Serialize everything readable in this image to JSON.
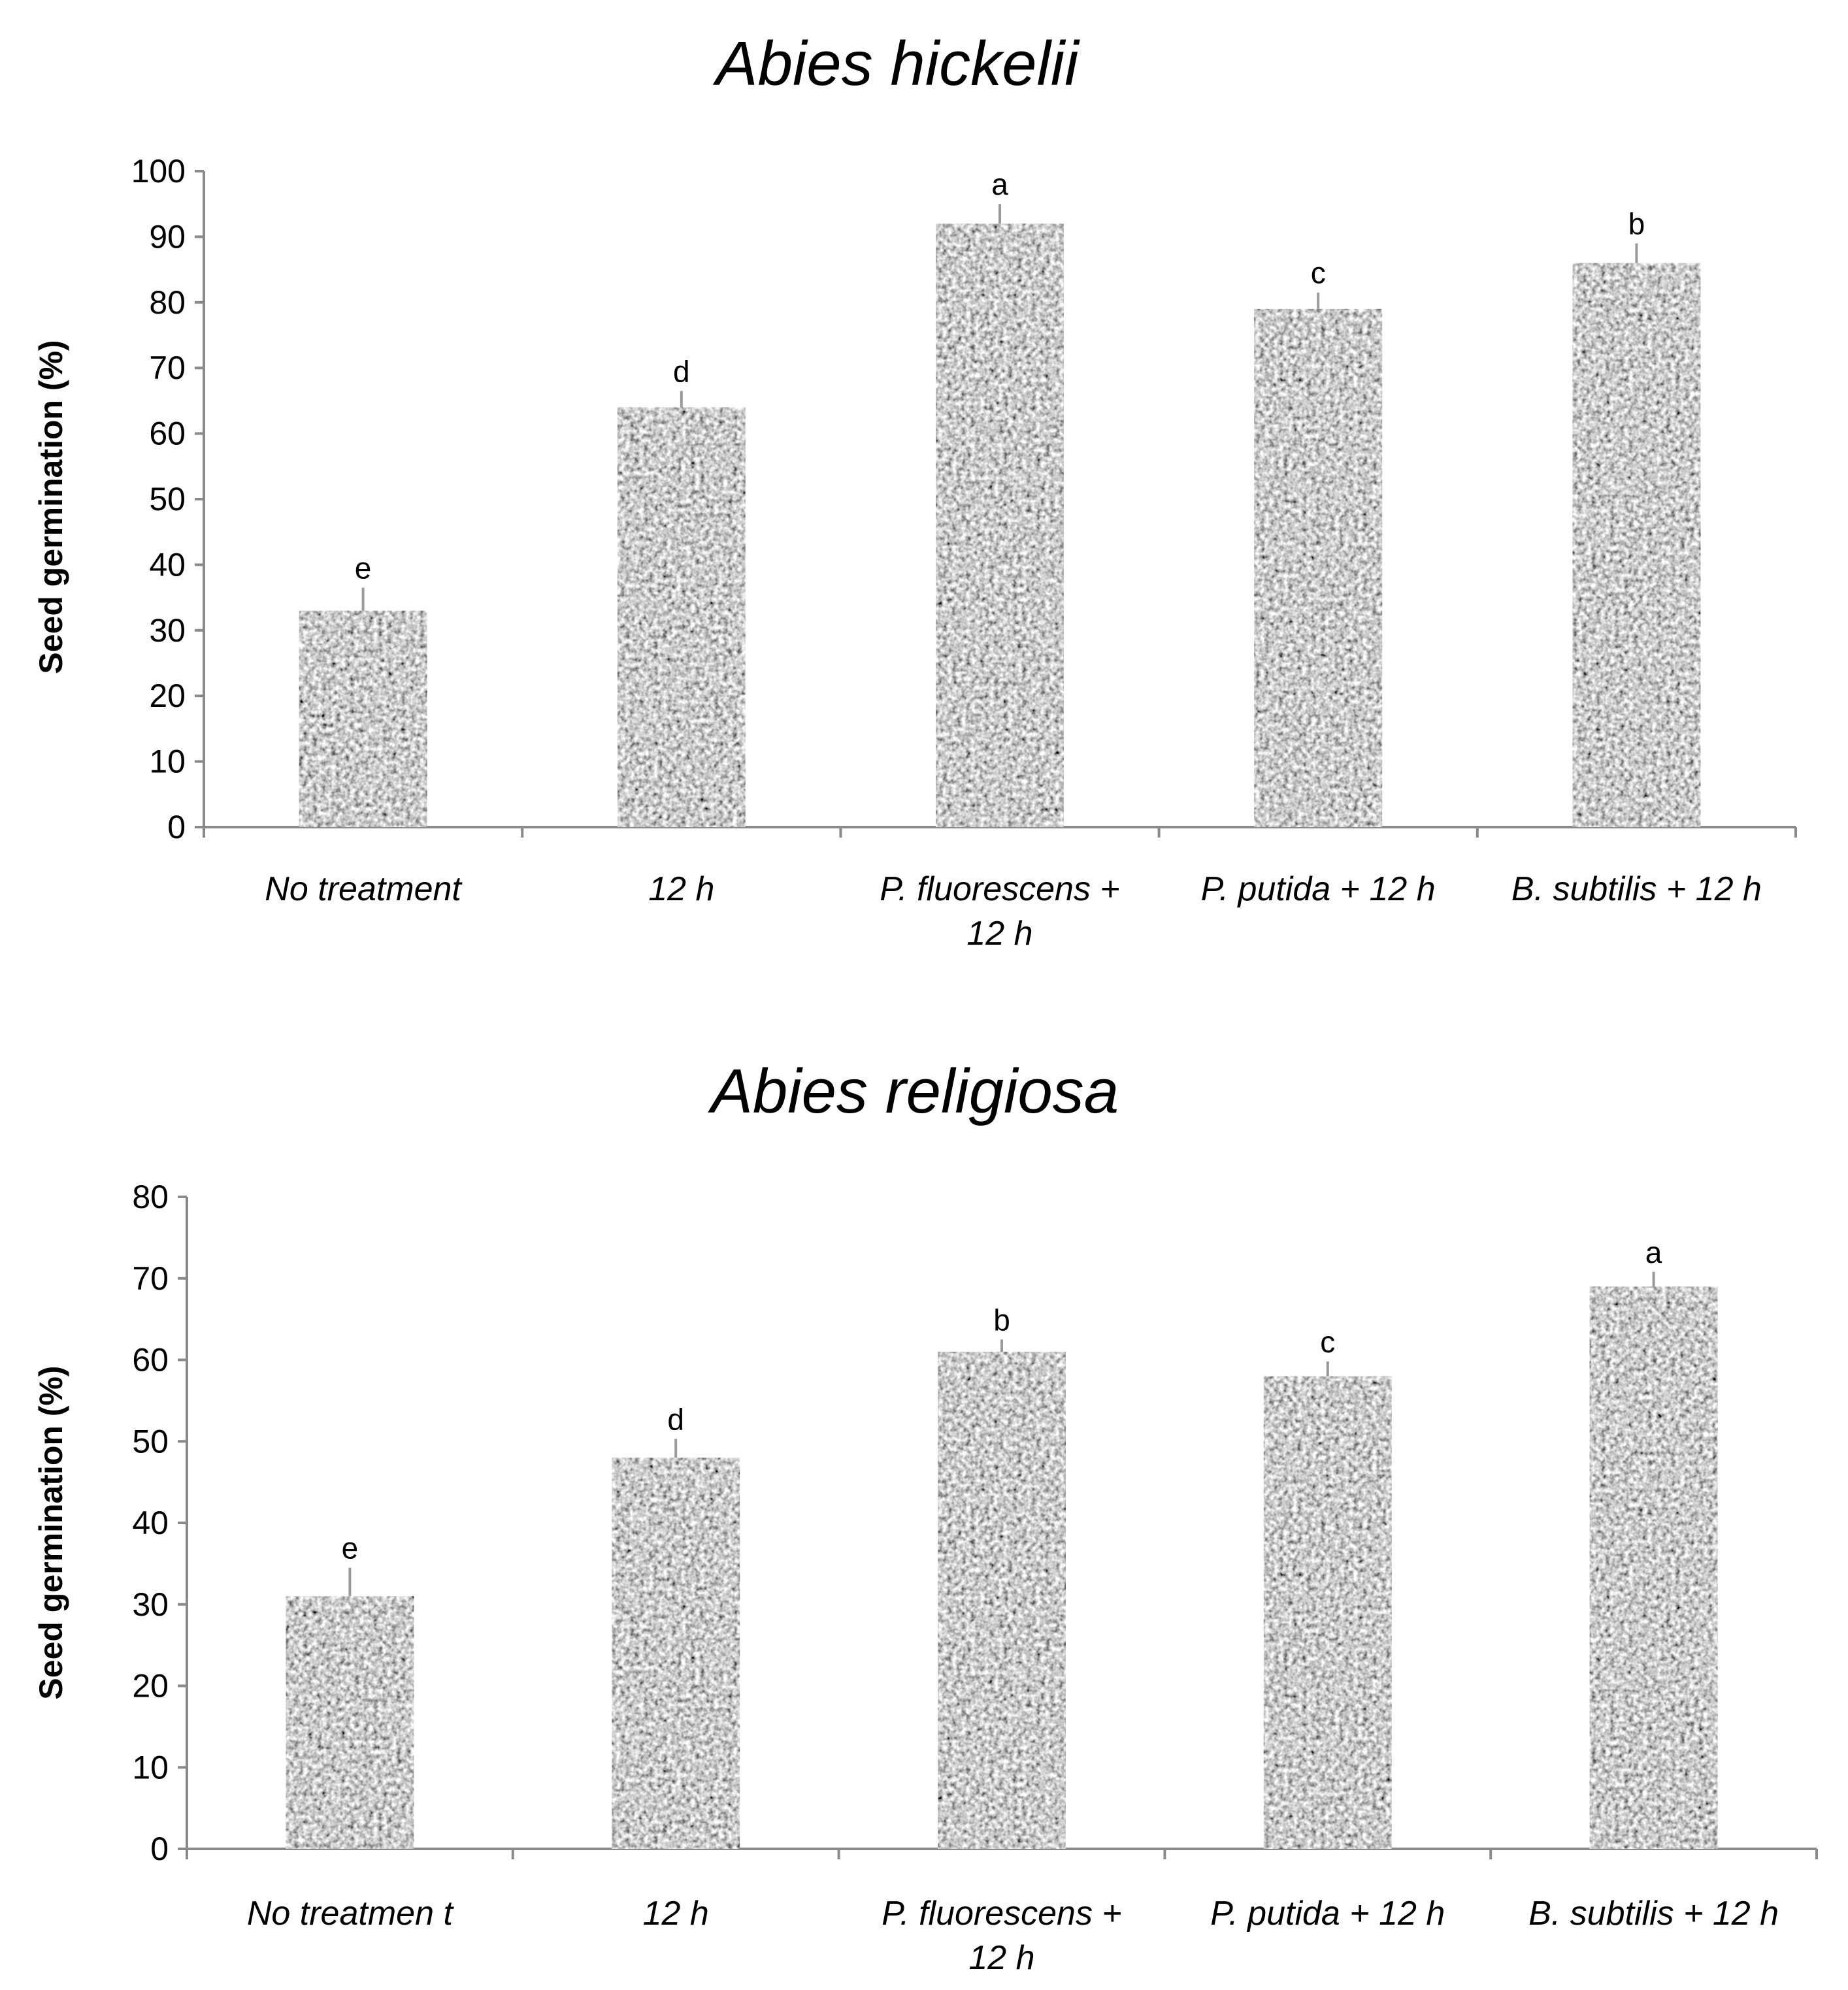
{
  "chart_data": [
    {
      "type": "bar",
      "title": "Abies hickelii",
      "xlabel": "",
      "ylabel": "Seed germination (%)",
      "ylim": [
        0,
        100
      ],
      "yticks": [
        0,
        10,
        20,
        30,
        40,
        50,
        60,
        70,
        80,
        90,
        100
      ],
      "categories": [
        [
          "No treatment"
        ],
        [
          "12 h"
        ],
        [
          "P. fluorescens  +",
          "12 h"
        ],
        [
          "P. putida + 12 h"
        ],
        [
          "B. subtilis + 12 h"
        ]
      ],
      "values": [
        33,
        64,
        92,
        79,
        86
      ],
      "errors": [
        3.5,
        2.5,
        3.0,
        2.5,
        3.0
      ],
      "significance_letters": [
        "e",
        "d",
        "a",
        "c",
        "b"
      ],
      "grid": false
    },
    {
      "type": "bar",
      "title": "Abies religiosa",
      "xlabel": "",
      "ylabel": "Seed germination (%)",
      "ylim": [
        0,
        80
      ],
      "yticks": [
        0,
        10,
        20,
        30,
        40,
        50,
        60,
        70,
        80
      ],
      "categories": [
        [
          "No treatmen t"
        ],
        [
          "12 h"
        ],
        [
          "P. fluorescens    +",
          "12 h"
        ],
        [
          "P. putida   + 12 h"
        ],
        [
          "B. subtilis   + 12 h"
        ]
      ],
      "values": [
        31,
        48,
        61,
        58,
        69
      ],
      "errors": [
        3.5,
        2.3,
        1.5,
        1.8,
        1.8
      ],
      "significance_letters": [
        "e",
        "d",
        "b",
        "c",
        "a"
      ],
      "grid": false
    }
  ],
  "colors": {
    "bar_pattern_light": "#c4c4c4",
    "bar_pattern_dark": "#2f2f2f",
    "axis": "#8a8a8a",
    "error_bar": "#9a9a9a",
    "text": "#000000"
  }
}
